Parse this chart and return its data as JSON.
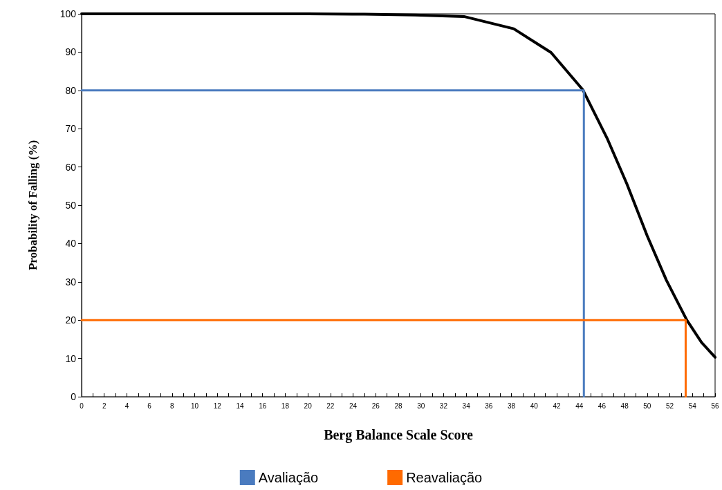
{
  "chart_data": {
    "type": "line",
    "xlabel": "Berg Balance Scale Score",
    "ylabel": "Probability of Falling (%)",
    "xlim": [
      0,
      56
    ],
    "ylim": [
      0,
      100
    ],
    "xticks": [
      0,
      {
        "value": 1,
        "label": null
      },
      2,
      {
        "value": 3,
        "label": null
      },
      4,
      {
        "value": 5,
        "label": null
      },
      6,
      {
        "value": 7,
        "label": null
      },
      8,
      {
        "value": 9,
        "label": null
      },
      10,
      {
        "value": 11,
        "label": null
      },
      12,
      {
        "value": 13,
        "label": null
      },
      14,
      {
        "value": 15,
        "label": null
      },
      16,
      {
        "value": 17,
        "label": null
      },
      18,
      {
        "value": 19,
        "label": null
      },
      20,
      {
        "value": 21,
        "label": null
      },
      22,
      {
        "value": 23,
        "label": null
      },
      24,
      {
        "value": 25,
        "label": null
      },
      26,
      {
        "value": 27,
        "label": null
      },
      28,
      {
        "value": 29,
        "label": null
      },
      30,
      {
        "value": 31,
        "label": null
      },
      32,
      {
        "value": 33,
        "label": null
      },
      34,
      {
        "value": 35,
        "label": null
      },
      36,
      {
        "value": 37,
        "label": null
      },
      38,
      {
        "value": 39,
        "label": null
      },
      40,
      {
        "value": 41,
        "label": null
      },
      42,
      {
        "value": 43,
        "label": null
      },
      44,
      {
        "value": 45,
        "label": null
      },
      46,
      {
        "value": 47,
        "label": null
      },
      48,
      {
        "value": 49,
        "label": null
      },
      50,
      {
        "value": 51,
        "label": null
      },
      52,
      {
        "value": 53,
        "label": null
      },
      54,
      {
        "value": 55,
        "label": null
      },
      56
    ],
    "yticks": [
      0,
      10,
      20,
      30,
      40,
      50,
      60,
      70,
      80,
      90,
      100
    ],
    "grid": false,
    "legend": "bottom",
    "marker": "none",
    "line_style": "solid",
    "series": [
      {
        "color": "#000000",
        "x": [
          0,
          10,
          20,
          25,
          29.5,
          33.8,
          38.2,
          41.5,
          44.3,
          46.5,
          48.2,
          50.0,
          51.7,
          53.5,
          54.8,
          56
        ],
        "values": [
          100,
          100,
          100,
          99.9,
          99.7,
          99.3,
          96.1,
          89.9,
          80.2,
          67.2,
          55.6,
          42.0,
          30.4,
          20.0,
          14.2,
          10.3
        ]
      },
      {
        "name": "Avaliação",
        "color": "#4a7bbf",
        "x": [
          0,
          44.4,
          44.4
        ],
        "values": [
          80,
          80,
          0
        ]
      },
      {
        "name": "Reavaliação",
        "color": "#ff6a00",
        "x": [
          0,
          53.4,
          53.4
        ],
        "values": [
          20,
          20,
          0
        ]
      }
    ]
  }
}
